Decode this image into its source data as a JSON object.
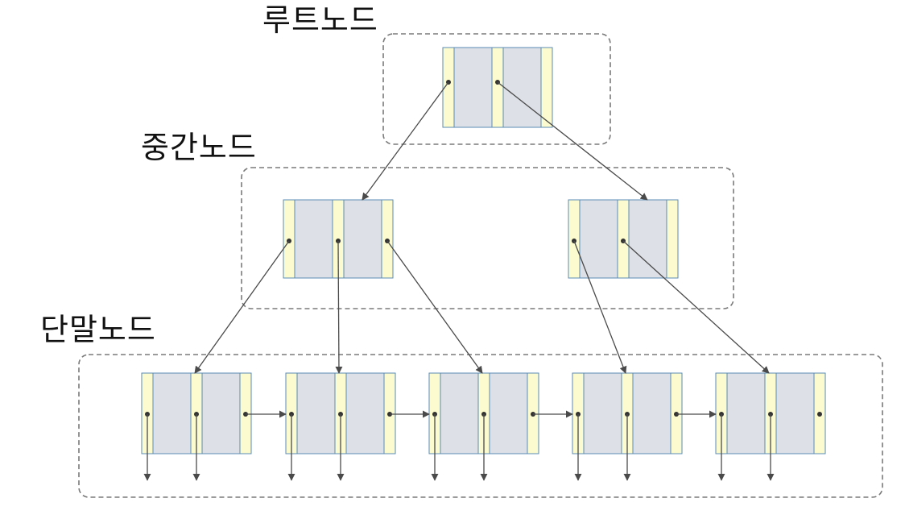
{
  "labels": {
    "root": "루트노드",
    "internal": "중간노드",
    "leaf": "단말노드"
  },
  "colors": {
    "key_fill": "#dde0e7",
    "pointer_fill": "#fbfbcf",
    "node_border": "#5b8bb5",
    "group_border": "#7a7a7a",
    "arrow": "#4a4a4a",
    "label_text": "#111111"
  },
  "tree": {
    "root": {
      "keys": 2,
      "children": [
        "internal-1",
        "internal-2"
      ]
    },
    "internal": [
      {
        "id": "internal-1",
        "keys": 2,
        "children": [
          "leaf-1",
          "leaf-2",
          "leaf-3"
        ]
      },
      {
        "id": "internal-2",
        "keys": 2,
        "children": [
          "leaf-4",
          "leaf-5"
        ]
      }
    ],
    "leaves": [
      {
        "id": "leaf-1",
        "keys": 2,
        "next": "leaf-2"
      },
      {
        "id": "leaf-2",
        "keys": 2,
        "next": "leaf-3"
      },
      {
        "id": "leaf-3",
        "keys": 2,
        "next": "leaf-4"
      },
      {
        "id": "leaf-4",
        "keys": 2,
        "next": "leaf-5"
      },
      {
        "id": "leaf-5",
        "keys": 2,
        "next": null
      }
    ]
  }
}
